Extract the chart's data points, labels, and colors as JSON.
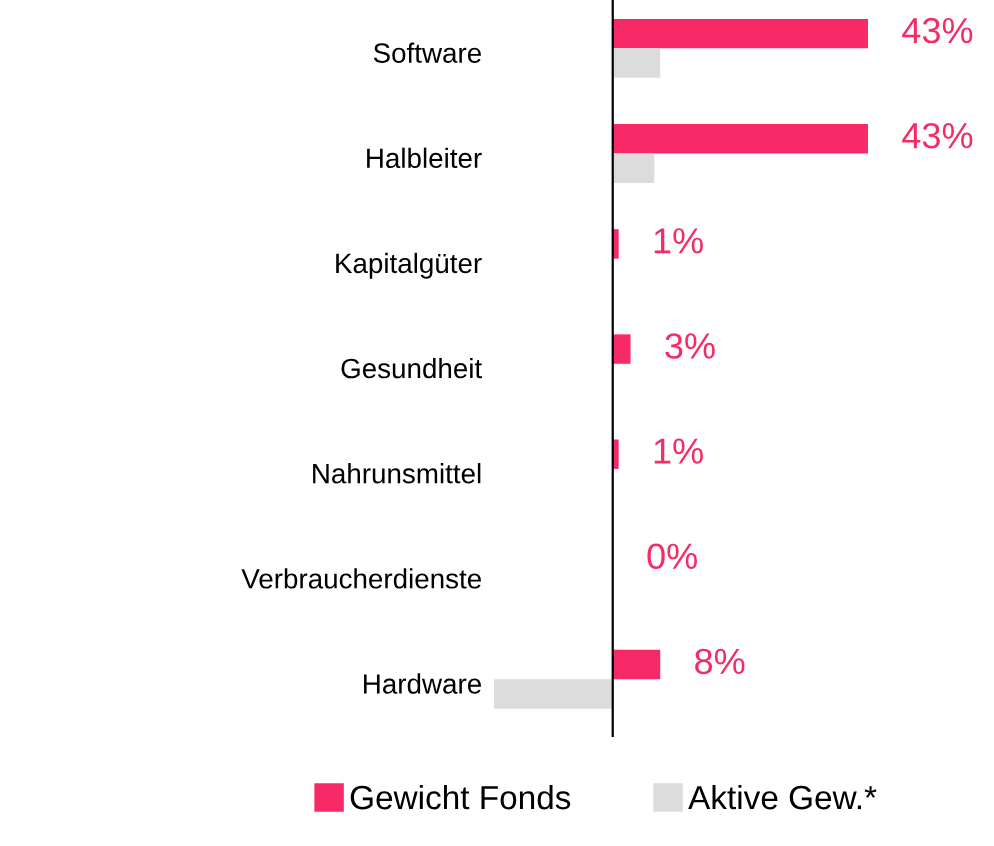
{
  "chart_data": {
    "type": "bar",
    "orientation": "horizontal",
    "categories": [
      "Software",
      "Halbleiter",
      "Kapitalgüter",
      "Gesundheit",
      "Nahrunsmittel",
      "Verbraucherdienste",
      "Hardware"
    ],
    "series": [
      {
        "name": "Gewicht Fonds",
        "color": "#f52a66",
        "values": [
          43,
          43,
          1,
          3,
          1,
          0,
          8
        ],
        "value_labels": [
          "43%",
          "43%",
          "1%",
          "3%",
          "1%",
          "0%",
          "8%"
        ]
      },
      {
        "name": "Aktive Gew.*",
        "color": "#dcdcdc",
        "values": [
          8,
          7,
          null,
          0,
          0,
          0,
          -20
        ]
      }
    ],
    "legend": "bottom",
    "grid": false
  }
}
